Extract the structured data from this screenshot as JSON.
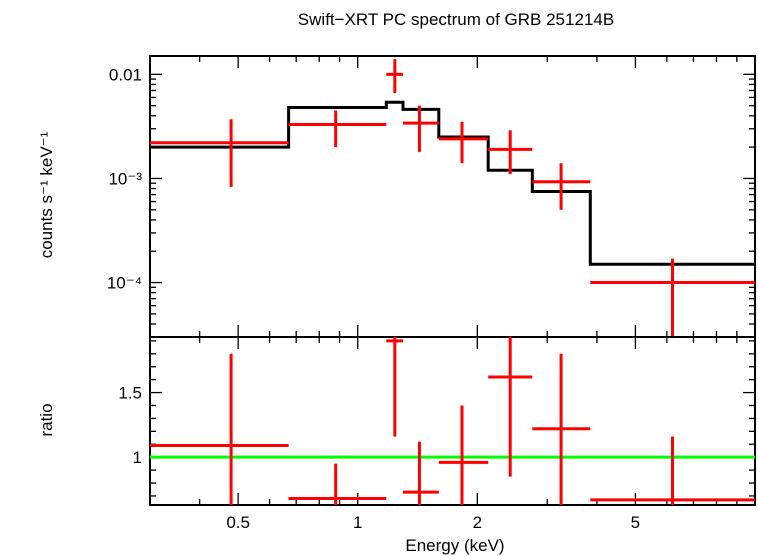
{
  "chart_data": {
    "type": "scatter",
    "title": "Swift−XRT PC spectrum of GRB 251214B",
    "xlabel": "Energy (keV)",
    "x_scale": "log",
    "xlim": [
      0.3,
      10
    ],
    "x_ticks": [
      {
        "value": 0.5,
        "label": "0.5"
      },
      {
        "value": 1,
        "label": "1"
      },
      {
        "value": 2,
        "label": "2"
      },
      {
        "value": 5,
        "label": "5"
      }
    ],
    "panels": [
      {
        "name": "spectrum",
        "ylabel": "counts s⁻¹ keV⁻¹",
        "y_scale": "log",
        "ylim": [
          3e-05,
          0.015
        ],
        "y_ticks": [
          {
            "value": 0.01,
            "label": "0.01"
          },
          {
            "value": 0.001,
            "label": "10⁻³"
          },
          {
            "value": 0.0001,
            "label": "10⁻⁴"
          }
        ],
        "data": [
          {
            "x_lo": 0.3,
            "x": 0.48,
            "x_hi": 0.67,
            "y": 0.0022,
            "y_lo": 0.00083,
            "y_hi": 0.0037
          },
          {
            "x_lo": 0.67,
            "x": 0.88,
            "x_hi": 1.18,
            "y": 0.0033,
            "y_lo": 0.002,
            "y_hi": 0.0045
          },
          {
            "x_lo": 1.18,
            "x": 1.24,
            "x_hi": 1.3,
            "y": 0.01,
            "y_lo": 0.0066,
            "y_hi": 0.014
          },
          {
            "x_lo": 1.3,
            "x": 1.43,
            "x_hi": 1.6,
            "y": 0.0034,
            "y_lo": 0.0018,
            "y_hi": 0.005
          },
          {
            "x_lo": 1.6,
            "x": 1.83,
            "x_hi": 2.13,
            "y": 0.0024,
            "y_lo": 0.0014,
            "y_hi": 0.0035
          },
          {
            "x_lo": 2.13,
            "x": 2.42,
            "x_hi": 2.75,
            "y": 0.0019,
            "y_lo": 0.0011,
            "y_hi": 0.0029
          },
          {
            "x_lo": 2.75,
            "x": 3.25,
            "x_hi": 3.85,
            "y": 0.00093,
            "y_lo": 0.0005,
            "y_hi": 0.0014
          },
          {
            "x_lo": 3.85,
            "x": 6.2,
            "x_hi": 10,
            "y": 0.0001,
            "y_lo": 3e-05,
            "y_hi": 0.00017
          }
        ],
        "model": [
          {
            "x_lo": 0.3,
            "x_hi": 0.67,
            "y": 0.002
          },
          {
            "x_lo": 0.67,
            "x_hi": 1.18,
            "y": 0.0048
          },
          {
            "x_lo": 1.18,
            "x_hi": 1.3,
            "y": 0.0054
          },
          {
            "x_lo": 1.3,
            "x_hi": 1.6,
            "y": 0.0046
          },
          {
            "x_lo": 1.6,
            "x_hi": 2.13,
            "y": 0.0025
          },
          {
            "x_lo": 2.13,
            "x_hi": 2.75,
            "y": 0.0012
          },
          {
            "x_lo": 2.75,
            "x_hi": 3.85,
            "y": 0.00075
          },
          {
            "x_lo": 3.85,
            "x_hi": 10,
            "y": 0.00015
          }
        ]
      },
      {
        "name": "ratio",
        "ylabel": "ratio",
        "y_scale": "linear",
        "ylim": [
          0.63,
          1.93
        ],
        "y_ticks": [
          {
            "value": 1,
            "label": "1"
          },
          {
            "value": 1.5,
            "label": "1.5"
          }
        ],
        "reference_line": 1,
        "data": [
          {
            "x_lo": 0.3,
            "x": 0.48,
            "x_hi": 0.67,
            "y": 1.09,
            "y_lo": 0.63,
            "y_hi": 1.8
          },
          {
            "x_lo": 0.67,
            "x": 0.88,
            "x_hi": 1.18,
            "y": 0.68,
            "y_lo": 0.63,
            "y_hi": 0.95
          },
          {
            "x_lo": 1.18,
            "x": 1.24,
            "x_hi": 1.3,
            "y": 1.9,
            "y_lo": 1.16,
            "y_hi": 1.93
          },
          {
            "x_lo": 1.3,
            "x": 1.43,
            "x_hi": 1.6,
            "y": 0.73,
            "y_lo": 0.63,
            "y_hi": 1.12
          },
          {
            "x_lo": 1.6,
            "x": 1.83,
            "x_hi": 2.13,
            "y": 0.96,
            "y_lo": 0.63,
            "y_hi": 1.4
          },
          {
            "x_lo": 2.13,
            "x": 2.42,
            "x_hi": 2.75,
            "y": 1.62,
            "y_lo": 0.85,
            "y_hi": 1.93
          },
          {
            "x_lo": 2.75,
            "x": 3.25,
            "x_hi": 3.85,
            "y": 1.22,
            "y_lo": 0.63,
            "y_hi": 1.8
          },
          {
            "x_lo": 3.85,
            "x": 6.2,
            "x_hi": 10,
            "y": 0.67,
            "y_lo": 0.63,
            "y_hi": 1.16
          }
        ]
      }
    ],
    "colors": {
      "data": "#ff0000",
      "model": "#000000",
      "reference": "#00ff00",
      "axes": "#000000"
    }
  }
}
